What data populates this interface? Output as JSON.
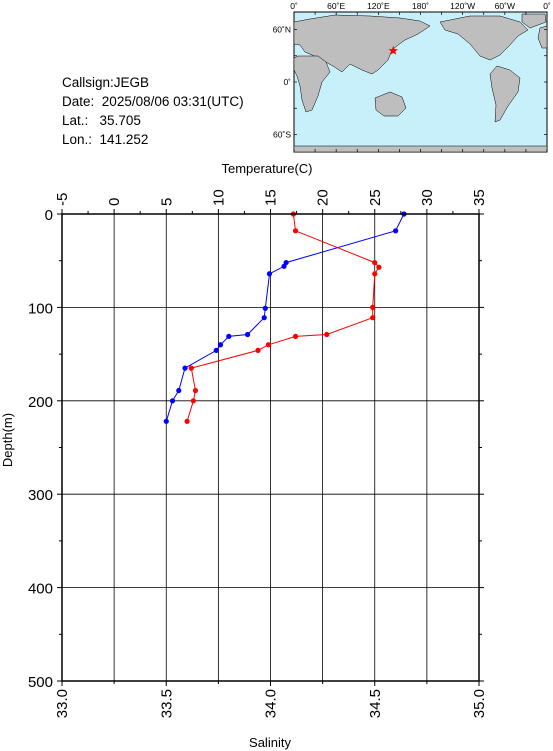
{
  "station": {
    "callsign_label": "Callsign:",
    "callsign": "JEGB",
    "date_label": "Date:",
    "date": "2025/08/06 03:31(UTC)",
    "lat_label": "Lat.:",
    "lat": "35.705",
    "lon_label": "Lon.:",
    "lon": "141.252"
  },
  "map": {
    "top_labels": [
      "0˚",
      "60˚E",
      "120˚E",
      "180˚",
      "120˚W",
      "60˚W",
      "0˚"
    ],
    "lat_labels": [
      "60˚N",
      "0˚",
      "60˚S"
    ],
    "ocean_color": "#c8f0fa",
    "land_color": "#bebebe",
    "marker_color": "#ff0000",
    "marker_lon": 141.252,
    "marker_lat": 35.705
  },
  "chart_data": {
    "type": "line",
    "ylabel": "Depth(m)",
    "ylim": [
      0,
      500
    ],
    "y_ticks": [
      0,
      100,
      200,
      300,
      400,
      500
    ],
    "temperature_axis": {
      "label": "Temperature(C)",
      "lim": [
        -5,
        35
      ],
      "ticks": [
        -5,
        0,
        5,
        10,
        15,
        20,
        25,
        30,
        35
      ]
    },
    "salinity_axis": {
      "label": "Salinity",
      "lim": [
        33.0,
        35.0
      ],
      "ticks": [
        "33.0",
        "33.5",
        "34.0",
        "34.5",
        "35.0"
      ]
    },
    "grid": true,
    "series": [
      {
        "name": "",
        "axis": "temperature",
        "color": "#0000ff",
        "points": [
          [
            27.8,
            0
          ],
          [
            27.0,
            18
          ],
          [
            16.5,
            52
          ],
          [
            16.3,
            56
          ],
          [
            14.9,
            64
          ],
          [
            14.5,
            101
          ],
          [
            14.4,
            111
          ],
          [
            12.8,
            129
          ],
          [
            11.0,
            131
          ],
          [
            10.2,
            140
          ],
          [
            9.8,
            146
          ],
          [
            6.8,
            165
          ],
          [
            6.2,
            189
          ],
          [
            5.6,
            200
          ],
          [
            5.0,
            222
          ]
        ]
      },
      {
        "name": "",
        "axis": "salinity",
        "color": "#ff0000",
        "points": [
          [
            34.11,
            0
          ],
          [
            34.12,
            18
          ],
          [
            34.5,
            52
          ],
          [
            34.52,
            57
          ],
          [
            34.5,
            64
          ],
          [
            34.49,
            100
          ],
          [
            34.49,
            111
          ],
          [
            34.27,
            129
          ],
          [
            34.12,
            131
          ],
          [
            33.99,
            140
          ],
          [
            33.94,
            146
          ],
          [
            33.62,
            165
          ],
          [
            33.64,
            189
          ],
          [
            33.63,
            200
          ],
          [
            33.6,
            222
          ]
        ]
      }
    ]
  }
}
